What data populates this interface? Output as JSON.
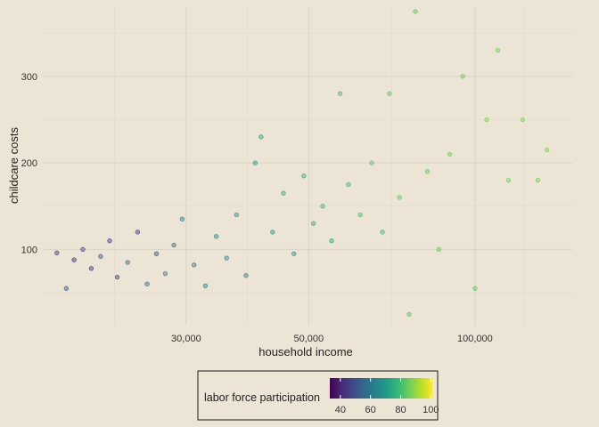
{
  "chart_data": {
    "type": "scatter",
    "title": "",
    "xlabel": "household income",
    "ylabel": "childcare costs",
    "x_scale": "log10",
    "xlim": [
      16500,
      150000
    ],
    "ylim": [
      12,
      380
    ],
    "x_ticks": [
      {
        "value": 30000,
        "label": "30,000"
      },
      {
        "value": 50000,
        "label": "50,000"
      },
      {
        "value": 100000,
        "label": "100,000"
      }
    ],
    "y_ticks": [
      {
        "value": 100,
        "label": "100"
      },
      {
        "value": 200,
        "label": "200"
      },
      {
        "value": 300,
        "label": "300"
      }
    ],
    "grid": true,
    "legend": {
      "title": "labor force participation",
      "placement": "bottom",
      "min": 33,
      "max": 101,
      "ticks": [
        {
          "value": 40,
          "label": "40"
        },
        {
          "value": 60,
          "label": "60"
        },
        {
          "value": 80,
          "label": "80"
        },
        {
          "value": 100,
          "label": "100"
        }
      ]
    },
    "color_scale": "viridis",
    "colors": {
      "background": "#ece5d5",
      "grid_major": "#d9d3c4",
      "grid_minor": "#e3ddcf",
      "viridis": [
        "#440154",
        "#482878",
        "#3e4a89",
        "#31688e",
        "#26828e",
        "#1f9e89",
        "#35b779",
        "#6ece58",
        "#b5de2b",
        "#fde725"
      ]
    },
    "series": [
      {
        "description_points": "representative points sampled from the plotted cloud; x = household income, y = childcare costs, c = labor force participation",
        "points": [
          {
            "x": 17500,
            "y": 96,
            "c": 45
          },
          {
            "x": 18200,
            "y": 55,
            "c": 52
          },
          {
            "x": 18800,
            "y": 88,
            "c": 40
          },
          {
            "x": 19500,
            "y": 100,
            "c": 48
          },
          {
            "x": 20200,
            "y": 78,
            "c": 42
          },
          {
            "x": 21000,
            "y": 92,
            "c": 50
          },
          {
            "x": 21800,
            "y": 110,
            "c": 44
          },
          {
            "x": 22500,
            "y": 68,
            "c": 46
          },
          {
            "x": 23500,
            "y": 85,
            "c": 55
          },
          {
            "x": 24500,
            "y": 120,
            "c": 43
          },
          {
            "x": 25500,
            "y": 60,
            "c": 58
          },
          {
            "x": 26500,
            "y": 95,
            "c": 50
          },
          {
            "x": 27500,
            "y": 72,
            "c": 62
          },
          {
            "x": 28500,
            "y": 105,
            "c": 56
          },
          {
            "x": 29500,
            "y": 135,
            "c": 65
          },
          {
            "x": 31000,
            "y": 82,
            "c": 60
          },
          {
            "x": 32500,
            "y": 58,
            "c": 63
          },
          {
            "x": 34000,
            "y": 115,
            "c": 66
          },
          {
            "x": 35500,
            "y": 90,
            "c": 64
          },
          {
            "x": 37000,
            "y": 140,
            "c": 68
          },
          {
            "x": 38500,
            "y": 70,
            "c": 62
          },
          {
            "x": 40000,
            "y": 200,
            "c": 70
          },
          {
            "x": 41000,
            "y": 230,
            "c": 72
          },
          {
            "x": 43000,
            "y": 120,
            "c": 70
          },
          {
            "x": 45000,
            "y": 165,
            "c": 74
          },
          {
            "x": 47000,
            "y": 95,
            "c": 68
          },
          {
            "x": 49000,
            "y": 185,
            "c": 76
          },
          {
            "x": 51000,
            "y": 130,
            "c": 75
          },
          {
            "x": 53000,
            "y": 150,
            "c": 78
          },
          {
            "x": 55000,
            "y": 110,
            "c": 74
          },
          {
            "x": 57000,
            "y": 280,
            "c": 80
          },
          {
            "x": 59000,
            "y": 175,
            "c": 79
          },
          {
            "x": 62000,
            "y": 140,
            "c": 80
          },
          {
            "x": 65000,
            "y": 200,
            "c": 82
          },
          {
            "x": 68000,
            "y": 120,
            "c": 78
          },
          {
            "x": 70000,
            "y": 280,
            "c": 84
          },
          {
            "x": 73000,
            "y": 160,
            "c": 83
          },
          {
            "x": 76000,
            "y": 25,
            "c": 82
          },
          {
            "x": 78000,
            "y": 375,
            "c": 84
          },
          {
            "x": 82000,
            "y": 190,
            "c": 85
          },
          {
            "x": 86000,
            "y": 100,
            "c": 84
          },
          {
            "x": 90000,
            "y": 210,
            "c": 86
          },
          {
            "x": 95000,
            "y": 300,
            "c": 85
          },
          {
            "x": 100000,
            "y": 55,
            "c": 83
          },
          {
            "x": 105000,
            "y": 250,
            "c": 87
          },
          {
            "x": 110000,
            "y": 330,
            "c": 86
          },
          {
            "x": 115000,
            "y": 180,
            "c": 86
          },
          {
            "x": 122000,
            "y": 250,
            "c": 87
          },
          {
            "x": 130000,
            "y": 180,
            "c": 86
          },
          {
            "x": 135000,
            "y": 215,
            "c": 87
          }
        ]
      }
    ]
  }
}
